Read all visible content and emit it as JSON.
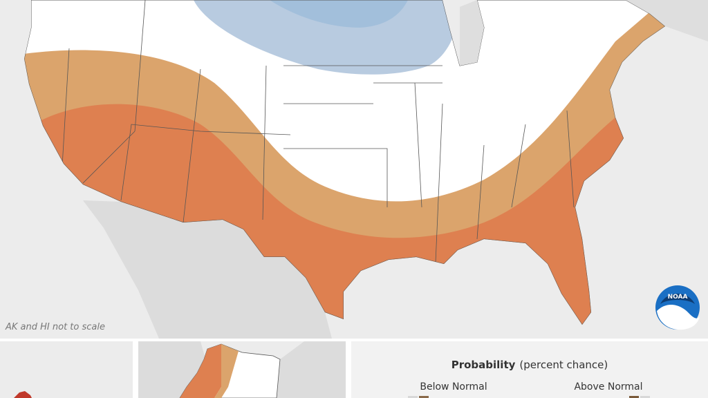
{
  "map_note": "AK and HI not to scale",
  "logo": "NOAA",
  "legend": {
    "title": "Probability",
    "subtitle": "(percent chance)",
    "below": "Below Normal",
    "above": "Above Normal"
  }
}
